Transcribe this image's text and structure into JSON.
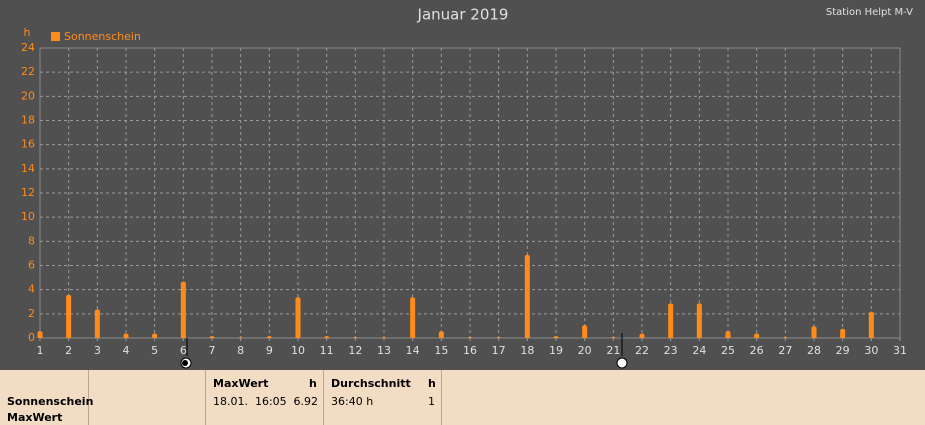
{
  "chart_data": {
    "type": "bar",
    "title": "Januar 2019",
    "subtitle": "Station Helpt M-V",
    "y_label": "h",
    "x": [
      1,
      2,
      3,
      4,
      5,
      6,
      7,
      8,
      9,
      10,
      11,
      12,
      13,
      14,
      15,
      16,
      17,
      18,
      19,
      20,
      21,
      22,
      23,
      24,
      25,
      26,
      27,
      28,
      29,
      30
    ],
    "series": [
      {
        "name": "Sonnenschein",
        "color": "#ff8c1a",
        "values": [
          0.6,
          3.6,
          2.4,
          0.4,
          0.4,
          4.7,
          0.2,
          0.1,
          0.2,
          3.4,
          0.2,
          0.1,
          0.1,
          3.4,
          0.6,
          0.1,
          0.1,
          6.92,
          0.2,
          1.1,
          0.1,
          0.4,
          2.9,
          2.9,
          0.6,
          0.4,
          0.1,
          1.0,
          0.8,
          2.2
        ]
      }
    ],
    "xlim": [
      1,
      31
    ],
    "xticks": [
      1,
      2,
      3,
      4,
      5,
      6,
      7,
      8,
      9,
      10,
      11,
      12,
      13,
      14,
      15,
      16,
      17,
      18,
      19,
      20,
      21,
      22,
      23,
      24,
      25,
      26,
      27,
      28,
      29,
      30,
      31
    ],
    "ylim": [
      0,
      24
    ],
    "yticks": [
      0,
      2,
      4,
      6,
      8,
      10,
      12,
      14,
      16,
      18,
      20,
      22,
      24
    ],
    "grid": true,
    "legend": "top-left"
  },
  "table": {
    "row_labels": [
      "Sonnenschein",
      "MaxWert"
    ],
    "columns": [
      {
        "header": "MaxWert",
        "unit": "h",
        "cells": [
          "18.01.  16:05",
          "6.92"
        ]
      },
      {
        "header": "Durchschnitt",
        "unit": "h",
        "cells": [
          "36:40 h",
          "1"
        ]
      }
    ]
  }
}
